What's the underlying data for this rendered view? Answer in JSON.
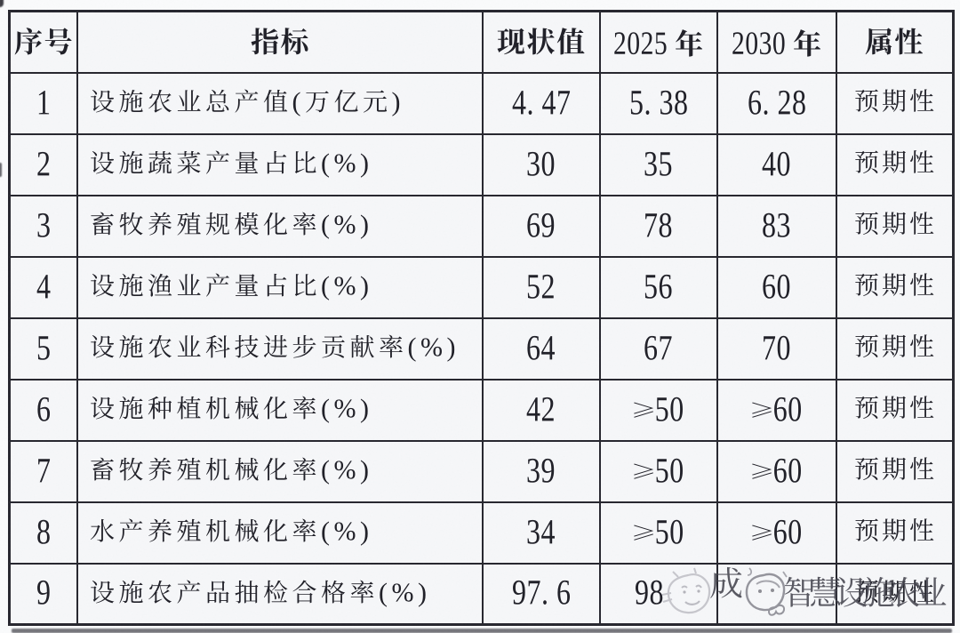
{
  "page": {
    "background": "#fafbfc",
    "table_background": "#f6f7f9",
    "grid_color": "#26262e",
    "text_color": "#1f1f27"
  },
  "table": {
    "columns": [
      {
        "key": "index",
        "label": "序号"
      },
      {
        "key": "indicator",
        "label": "指标"
      },
      {
        "key": "current",
        "label": "现状值"
      },
      {
        "key": "y2025",
        "label": "2025 年"
      },
      {
        "key": "y2030",
        "label": "2030 年"
      },
      {
        "key": "attribute",
        "label": "属性"
      }
    ],
    "rows": [
      {
        "index": "1",
        "indicator": "设施农业总产值(万亿元)",
        "current": "4. 47",
        "y2025": "5. 38",
        "y2030": "6. 28",
        "attribute": "预期性"
      },
      {
        "index": "2",
        "indicator": "设施蔬菜产量占比(%)",
        "current": "30",
        "y2025": "35",
        "y2030": "40",
        "attribute": "预期性"
      },
      {
        "index": "3",
        "indicator": "畜牧养殖规模化率(%)",
        "current": "69",
        "y2025": "78",
        "y2030": "83",
        "attribute": "预期性"
      },
      {
        "index": "4",
        "indicator": "设施渔业产量占比(%)",
        "current": "52",
        "y2025": "56",
        "y2030": "60",
        "attribute": "预期性"
      },
      {
        "index": "5",
        "indicator": "设施农业科技进步贡献率(%)",
        "current": "64",
        "y2025": "67",
        "y2030": "70",
        "attribute": "预期性"
      },
      {
        "index": "6",
        "indicator": "设施种植机械化率(%)",
        "current": "42",
        "y2025": "≥50",
        "y2030": "≥60",
        "attribute": "预期性"
      },
      {
        "index": "7",
        "indicator": "畜牧养殖机械化率(%)",
        "current": "39",
        "y2025": "≥50",
        "y2030": "≥60",
        "attribute": "预期性"
      },
      {
        "index": "8",
        "indicator": "水产养殖机械化率(%)",
        "current": "34",
        "y2025": "≥50",
        "y2030": "≥60",
        "attribute": "预期性"
      },
      {
        "index": "9",
        "indicator": "设施农产品抽检合格率(%)",
        "current": "97. 6",
        "y2025": "98",
        "y2030": "",
        "attribute": "预期性"
      }
    ]
  },
  "watermark": {
    "prefix": "成",
    "text": "智慧设施农业",
    "color": "#43434d",
    "icons": [
      "smiley-doodle",
      "scribble-doodle"
    ]
  }
}
